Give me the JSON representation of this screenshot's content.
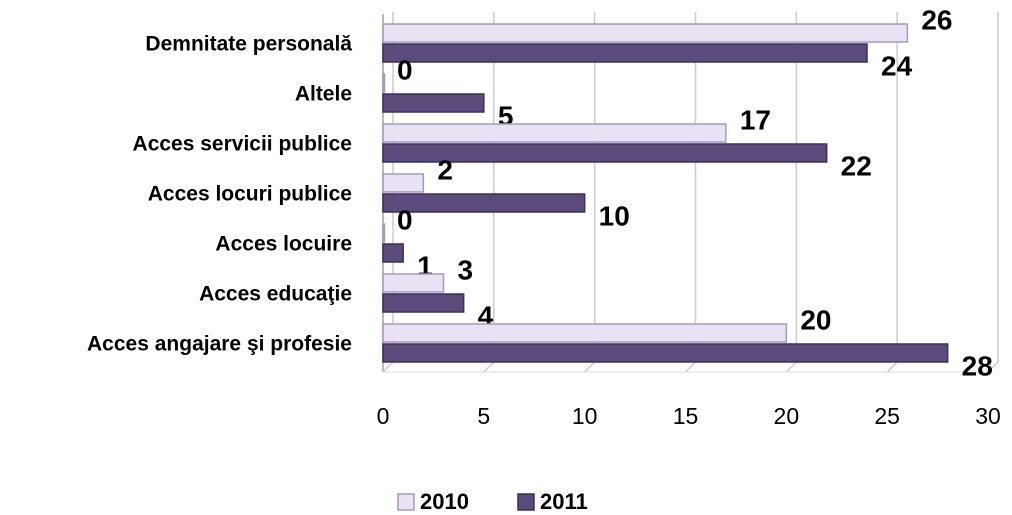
{
  "chart_data": {
    "type": "bar",
    "orientation": "horizontal",
    "categories": [
      "Demnitate personală",
      "Altele",
      "Acces servicii publice",
      "Acces locuri publice",
      "Acces locuire",
      "Acces educaţie",
      "Acces angajare şi profesie"
    ],
    "series": [
      {
        "name": "2010",
        "color": "#e8e2f2",
        "values": [
          26,
          0,
          17,
          2,
          0,
          3,
          20
        ]
      },
      {
        "name": "2011",
        "color": "#5b4a7c",
        "values": [
          24,
          5,
          22,
          10,
          1,
          4,
          28
        ]
      }
    ],
    "xlim": [
      0,
      30
    ],
    "xticks": [
      0,
      5,
      10,
      15,
      20,
      25,
      30
    ],
    "grid": true,
    "legend": "bottom"
  }
}
